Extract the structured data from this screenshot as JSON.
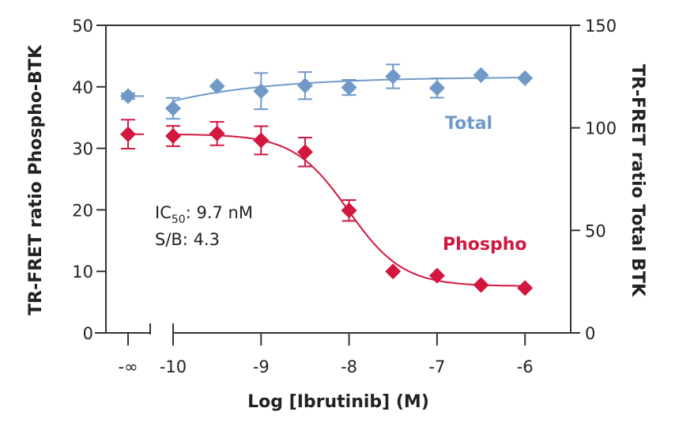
{
  "chart_data": {
    "type": "scatter",
    "xlabel": "Log [Ibrutinib] (M)",
    "ylabel_left": "TR-FRET ratio Phospho-BTK",
    "ylabel_right": "TR-FRET ratio Total BTK",
    "x_ticks": [
      "-∞",
      "-10",
      "-9",
      "-8",
      "-7",
      "-6"
    ],
    "y_left_ticks": [
      0,
      10,
      20,
      30,
      40,
      50
    ],
    "y_right_ticks": [
      0,
      50,
      100,
      150
    ],
    "ylim_left": [
      0,
      50
    ],
    "ylim_right": [
      0,
      150
    ],
    "x_break": "between -∞ and -10",
    "grid": false,
    "annotations": {
      "ic50_prefix": "IC",
      "ic50_sub": "50",
      "ic50_value": ": 9.7 nM",
      "sb": "S/B: 4.3"
    },
    "x": [
      "-inf",
      -10,
      -9.5,
      -9,
      -8.5,
      -8,
      -7.5,
      -7,
      -6.5,
      -6
    ],
    "series": [
      {
        "name": "Total",
        "axis": "right",
        "color": "#7099c8",
        "values": [
          115.5,
          109.5,
          120.3,
          117.9,
          120.6,
          119.7,
          125.1,
          119.4,
          125.7,
          124.2
        ],
        "errors": [
          1.4,
          5.1,
          0,
          8.8,
          6.6,
          3.7,
          5.8,
          4.7,
          0,
          0
        ],
        "fit": {
          "model": "smooth",
          "start": 113,
          "plateau": 124.8
        }
      },
      {
        "name": "Phospho",
        "axis": "left",
        "color": "#d2173f",
        "values": [
          32.3,
          32.0,
          32.4,
          31.3,
          29.4,
          19.9,
          10.0,
          9.3,
          7.8,
          7.3
        ],
        "errors": [
          2.35,
          1.65,
          1.9,
          2.3,
          2.35,
          1.7,
          0,
          0,
          0,
          0
        ],
        "fit": {
          "model": "sigmoid",
          "top": 32.3,
          "bottom": 7.6,
          "logIC50": -8.01,
          "hill": 1.4
        }
      }
    ]
  }
}
